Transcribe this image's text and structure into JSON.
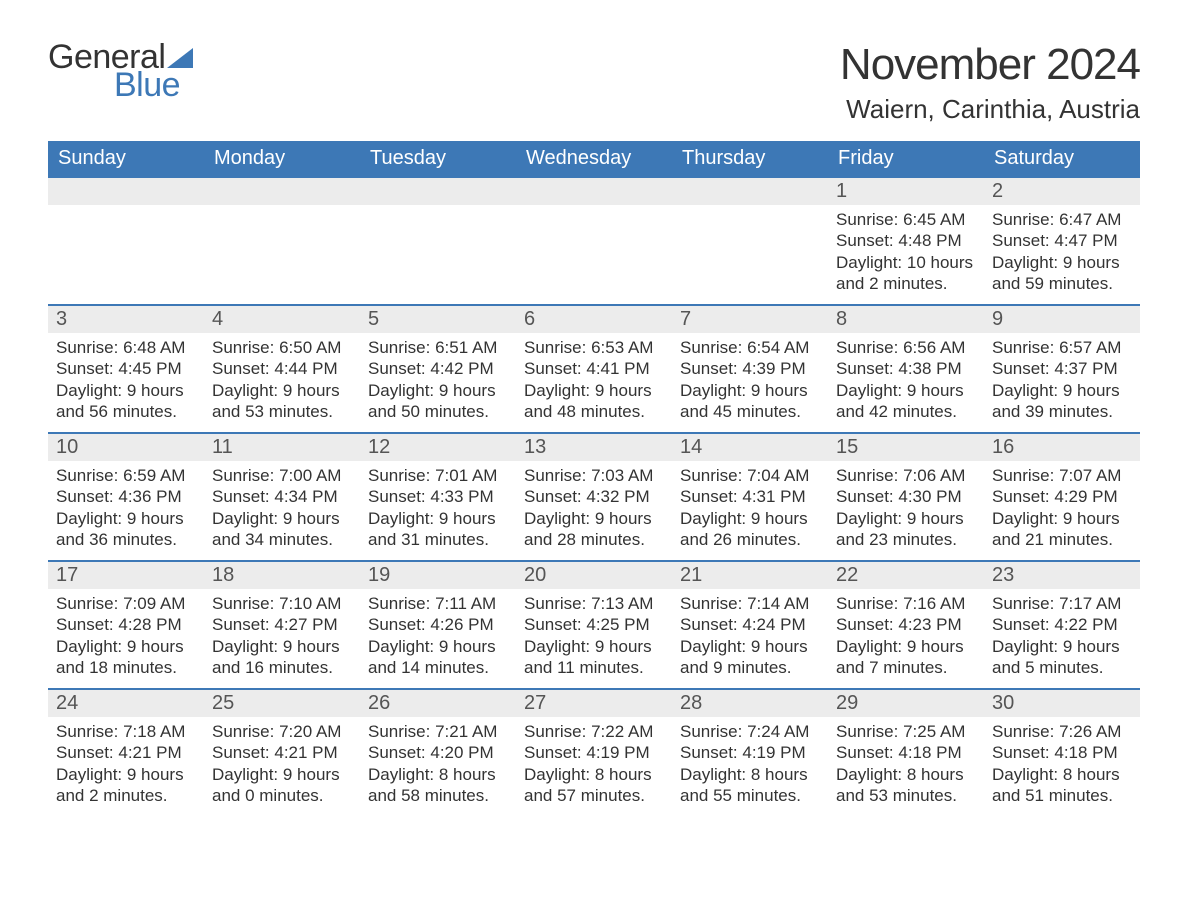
{
  "brand": {
    "word1": "General",
    "word2": "Blue",
    "sail_color": "#3d78b6"
  },
  "title": "November 2024",
  "location": "Waiern, Carinthia, Austria",
  "colors": {
    "header_bg": "#3d78b6",
    "header_text": "#ffffff",
    "row_separator": "#3d78b6",
    "daynum_bg": "#ececec",
    "body_text": "#333333",
    "page_bg": "#ffffff"
  },
  "typography": {
    "title_fontsize": 44,
    "location_fontsize": 26,
    "weekday_fontsize": 20,
    "daynum_fontsize": 20,
    "body_fontsize": 17,
    "font_family": "Arial"
  },
  "weekdays": [
    "Sunday",
    "Monday",
    "Tuesday",
    "Wednesday",
    "Thursday",
    "Friday",
    "Saturday"
  ],
  "weeks": [
    [
      null,
      null,
      null,
      null,
      null,
      {
        "n": 1,
        "sunrise": "6:45 AM",
        "sunset": "4:48 PM",
        "dl": "10 hours and 2 minutes."
      },
      {
        "n": 2,
        "sunrise": "6:47 AM",
        "sunset": "4:47 PM",
        "dl": "9 hours and 59 minutes."
      }
    ],
    [
      {
        "n": 3,
        "sunrise": "6:48 AM",
        "sunset": "4:45 PM",
        "dl": "9 hours and 56 minutes."
      },
      {
        "n": 4,
        "sunrise": "6:50 AM",
        "sunset": "4:44 PM",
        "dl": "9 hours and 53 minutes."
      },
      {
        "n": 5,
        "sunrise": "6:51 AM",
        "sunset": "4:42 PM",
        "dl": "9 hours and 50 minutes."
      },
      {
        "n": 6,
        "sunrise": "6:53 AM",
        "sunset": "4:41 PM",
        "dl": "9 hours and 48 minutes."
      },
      {
        "n": 7,
        "sunrise": "6:54 AM",
        "sunset": "4:39 PM",
        "dl": "9 hours and 45 minutes."
      },
      {
        "n": 8,
        "sunrise": "6:56 AM",
        "sunset": "4:38 PM",
        "dl": "9 hours and 42 minutes."
      },
      {
        "n": 9,
        "sunrise": "6:57 AM",
        "sunset": "4:37 PM",
        "dl": "9 hours and 39 minutes."
      }
    ],
    [
      {
        "n": 10,
        "sunrise": "6:59 AM",
        "sunset": "4:36 PM",
        "dl": "9 hours and 36 minutes."
      },
      {
        "n": 11,
        "sunrise": "7:00 AM",
        "sunset": "4:34 PM",
        "dl": "9 hours and 34 minutes."
      },
      {
        "n": 12,
        "sunrise": "7:01 AM",
        "sunset": "4:33 PM",
        "dl": "9 hours and 31 minutes."
      },
      {
        "n": 13,
        "sunrise": "7:03 AM",
        "sunset": "4:32 PM",
        "dl": "9 hours and 28 minutes."
      },
      {
        "n": 14,
        "sunrise": "7:04 AM",
        "sunset": "4:31 PM",
        "dl": "9 hours and 26 minutes."
      },
      {
        "n": 15,
        "sunrise": "7:06 AM",
        "sunset": "4:30 PM",
        "dl": "9 hours and 23 minutes."
      },
      {
        "n": 16,
        "sunrise": "7:07 AM",
        "sunset": "4:29 PM",
        "dl": "9 hours and 21 minutes."
      }
    ],
    [
      {
        "n": 17,
        "sunrise": "7:09 AM",
        "sunset": "4:28 PM",
        "dl": "9 hours and 18 minutes."
      },
      {
        "n": 18,
        "sunrise": "7:10 AM",
        "sunset": "4:27 PM",
        "dl": "9 hours and 16 minutes."
      },
      {
        "n": 19,
        "sunrise": "7:11 AM",
        "sunset": "4:26 PM",
        "dl": "9 hours and 14 minutes."
      },
      {
        "n": 20,
        "sunrise": "7:13 AM",
        "sunset": "4:25 PM",
        "dl": "9 hours and 11 minutes."
      },
      {
        "n": 21,
        "sunrise": "7:14 AM",
        "sunset": "4:24 PM",
        "dl": "9 hours and 9 minutes."
      },
      {
        "n": 22,
        "sunrise": "7:16 AM",
        "sunset": "4:23 PM",
        "dl": "9 hours and 7 minutes."
      },
      {
        "n": 23,
        "sunrise": "7:17 AM",
        "sunset": "4:22 PM",
        "dl": "9 hours and 5 minutes."
      }
    ],
    [
      {
        "n": 24,
        "sunrise": "7:18 AM",
        "sunset": "4:21 PM",
        "dl": "9 hours and 2 minutes."
      },
      {
        "n": 25,
        "sunrise": "7:20 AM",
        "sunset": "4:21 PM",
        "dl": "9 hours and 0 minutes."
      },
      {
        "n": 26,
        "sunrise": "7:21 AM",
        "sunset": "4:20 PM",
        "dl": "8 hours and 58 minutes."
      },
      {
        "n": 27,
        "sunrise": "7:22 AM",
        "sunset": "4:19 PM",
        "dl": "8 hours and 57 minutes."
      },
      {
        "n": 28,
        "sunrise": "7:24 AM",
        "sunset": "4:19 PM",
        "dl": "8 hours and 55 minutes."
      },
      {
        "n": 29,
        "sunrise": "7:25 AM",
        "sunset": "4:18 PM",
        "dl": "8 hours and 53 minutes."
      },
      {
        "n": 30,
        "sunrise": "7:26 AM",
        "sunset": "4:18 PM",
        "dl": "8 hours and 51 minutes."
      }
    ]
  ],
  "labels": {
    "sunrise": "Sunrise: ",
    "sunset": "Sunset: ",
    "daylight": "Daylight: "
  }
}
